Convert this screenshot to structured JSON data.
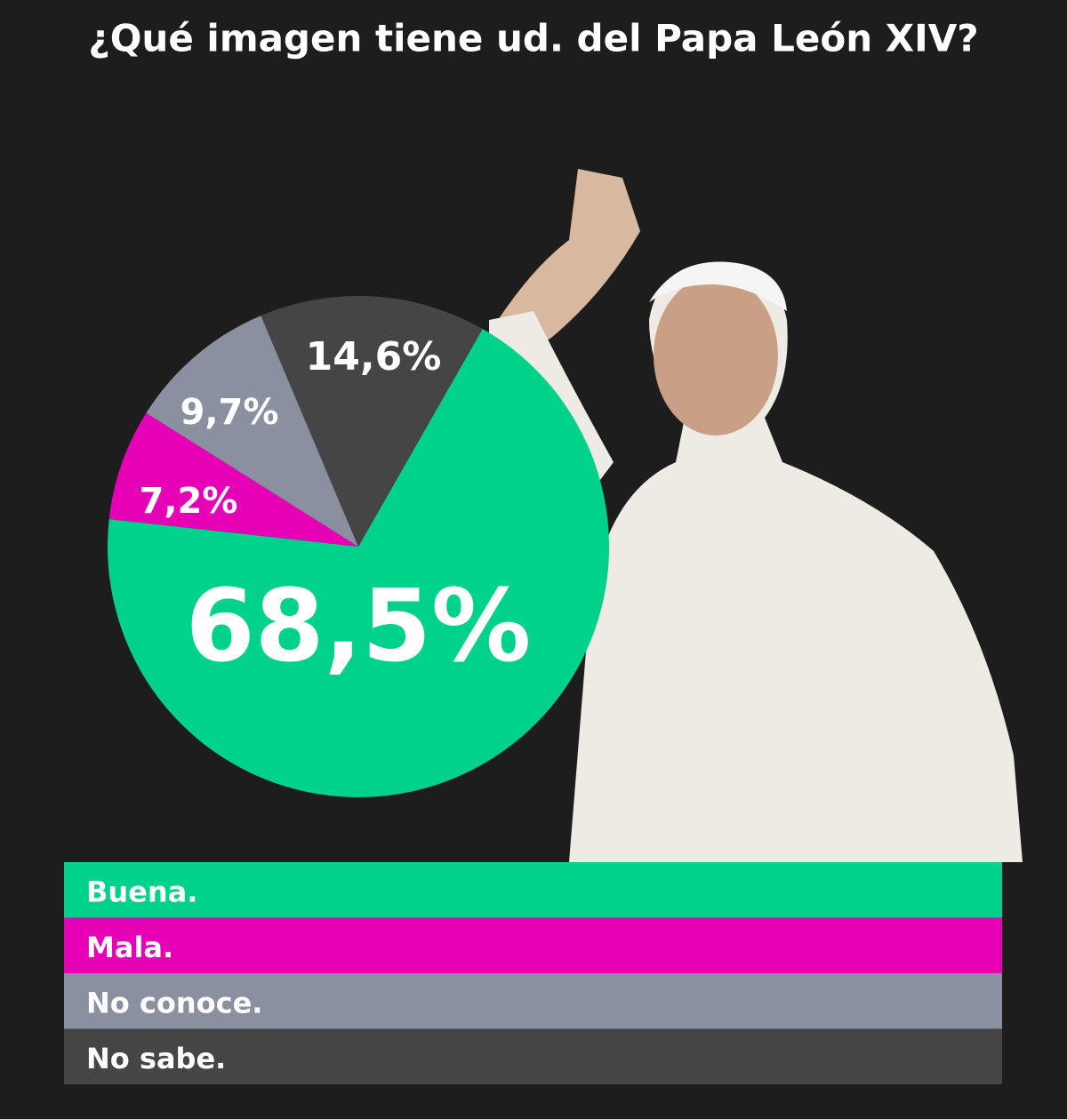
{
  "chart_data": {
    "type": "pie",
    "title": "¿Qué imagen tiene ud. del Papa León XIV?",
    "categories": [
      "Buena.",
      "Mala.",
      "No conoce.",
      "No sabe."
    ],
    "values": [
      68.5,
      7.2,
      9.7,
      14.6
    ],
    "value_labels": [
      "68,5%",
      "7,2%",
      "9,7%",
      "14,6%"
    ],
    "colors": [
      "#00d18b",
      "#e600b6",
      "#8a90a0",
      "#454545"
    ]
  }
}
